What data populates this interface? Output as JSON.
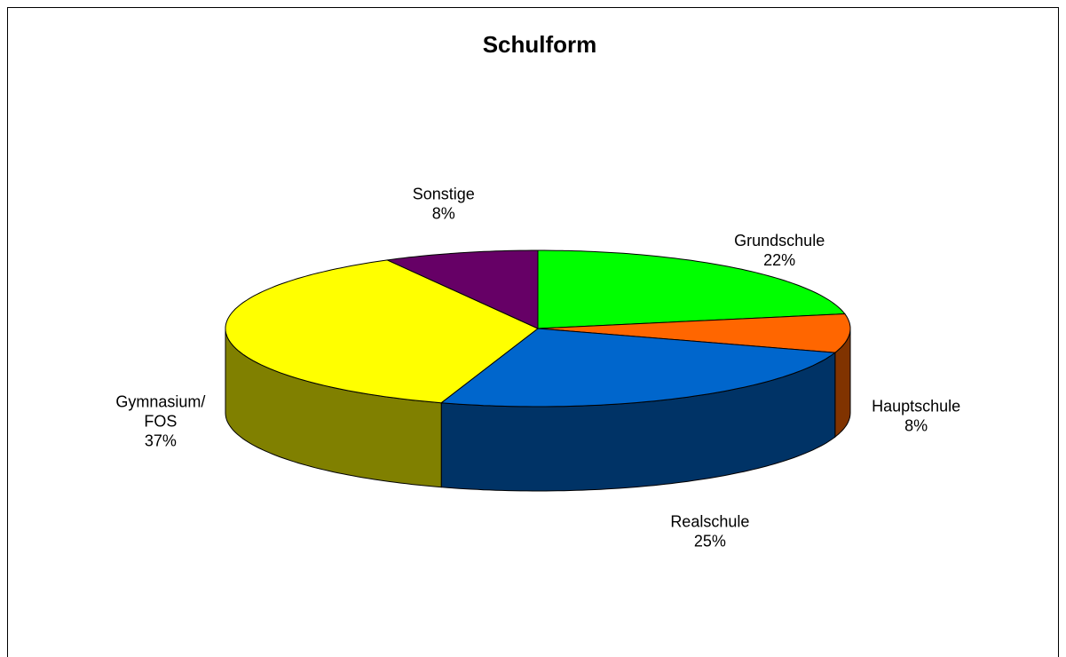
{
  "chart_data": {
    "type": "pie",
    "title": "Schulform",
    "categories": [
      "Grundschule",
      "Hauptschule",
      "Realschule",
      "Gymnasium/ FOS",
      "Sonstige"
    ],
    "values": [
      22,
      8,
      25,
      37,
      8
    ],
    "value_labels": [
      "22%",
      "8%",
      "25%",
      "37%",
      "8%"
    ],
    "colors": [
      "#00ff00",
      "#ff6600",
      "#0066cc",
      "#ffff00",
      "#660066"
    ],
    "side_colors": [
      "#008000",
      "#803300",
      "#003366",
      "#808000",
      "#330033"
    ]
  }
}
